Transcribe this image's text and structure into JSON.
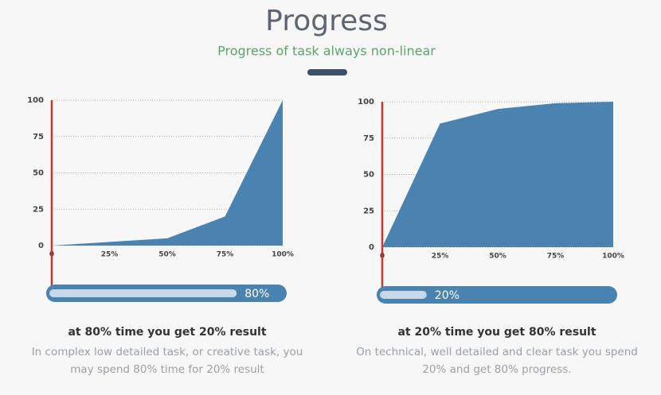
{
  "header": {
    "title": "Progress",
    "subtitle": "Progress of task always non-linear"
  },
  "chart_data": [
    {
      "type": "area",
      "x": [
        0,
        25,
        50,
        75,
        100
      ],
      "values": [
        0,
        2.5,
        5,
        20,
        100
      ],
      "color": "#4a82b0",
      "xlim": [
        0,
        100
      ],
      "xticks": [
        0,
        {
          "value": 25,
          "label": "25%"
        },
        {
          "value": 50,
          "label": "50%"
        },
        {
          "value": 75,
          "label": "75%"
        },
        {
          "value": 100,
          "label": "100%"
        }
      ],
      "ylim": [
        0,
        100
      ],
      "yticks": [
        0,
        25,
        50,
        75,
        100
      ],
      "grid": true,
      "progress": {
        "value": 80,
        "label": "80%"
      },
      "caption_title": "at 80% time you get 20% result",
      "caption_text": "In complex low detailed task, or creative task, you may spend 80% time for 20% result"
    },
    {
      "type": "area",
      "x": [
        0,
        25,
        50,
        75,
        100
      ],
      "values": [
        0,
        85,
        95,
        99,
        100
      ],
      "color": "#4a82b0",
      "xlim": [
        0,
        100
      ],
      "xticks": [
        0,
        {
          "value": 25,
          "label": "25%"
        },
        {
          "value": 50,
          "label": "50%"
        },
        {
          "value": 75,
          "label": "75%"
        },
        {
          "value": 100,
          "label": "100%"
        }
      ],
      "ylim": [
        0,
        100
      ],
      "yticks": [
        0,
        25,
        50,
        75,
        100
      ],
      "grid": true,
      "progress": {
        "value": 20,
        "label": "20%"
      },
      "caption_title": "at 20% time you get 80% result",
      "caption_text": "On technical, well detailed and clear task you spend 20% and get 80% progress."
    }
  ]
}
